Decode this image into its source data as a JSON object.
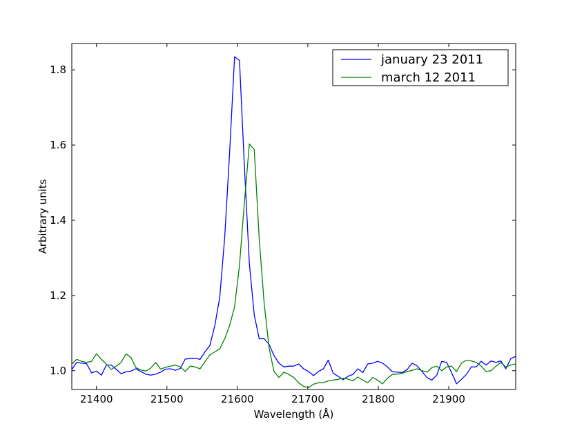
{
  "chart_data": {
    "type": "line",
    "title": "",
    "xlabel": "Wavelength (Å)",
    "ylabel": "Arbitrary units",
    "xlim": [
      21365,
      21995
    ],
    "ylim": [
      0.95,
      1.87
    ],
    "xticks": [
      21400,
      21500,
      21600,
      21700,
      21800,
      21900
    ],
    "xtick_labels": [
      "21400",
      "21500",
      "21600",
      "21700",
      "21800",
      "21900"
    ],
    "yticks": [
      1.0,
      1.2,
      1.4,
      1.6,
      1.8
    ],
    "ytick_labels": [
      "1.0",
      "1.2",
      "1.4",
      "1.6",
      "1.8"
    ],
    "grid": false,
    "legend_position": "top-right",
    "series": [
      {
        "name": "january 23 2011",
        "color": "#0000ff",
        "x": [
          21365,
          21372,
          21379,
          21386,
          21393,
          21400,
          21407,
          21414,
          21421,
          21428,
          21435,
          21442,
          21449,
          21456,
          21463,
          21470,
          21477,
          21484,
          21491,
          21498,
          21505,
          21512,
          21519,
          21526,
          21533,
          21540,
          21547,
          21554,
          21561,
          21568,
          21575,
          21582,
          21589,
          21596,
          21603,
          21610,
          21617,
          21624,
          21631,
          21638,
          21645,
          21652,
          21659,
          21666,
          21673,
          21680,
          21687,
          21694,
          21701,
          21708,
          21715,
          21722,
          21729,
          21736,
          21743,
          21750,
          21757,
          21764,
          21771,
          21778,
          21785,
          21792,
          21799,
          21806,
          21813,
          21820,
          21827,
          21834,
          21841,
          21848,
          21855,
          21862,
          21869,
          21876,
          21883,
          21890,
          21897,
          21904,
          21911,
          21918,
          21925,
          21932,
          21939,
          21946,
          21953,
          21960,
          21967,
          21974,
          21981,
          21988,
          21995
        ],
        "y": [
          1.003,
          1.022,
          1.02,
          1.019,
          0.994,
          0.999,
          0.988,
          1.015,
          1.015,
          1.004,
          0.992,
          0.997,
          0.999,
          1.005,
          0.998,
          0.991,
          0.988,
          0.991,
          0.996,
          1.004,
          1.005,
          1.001,
          1.006,
          1.031,
          1.032,
          1.033,
          1.03,
          1.05,
          1.067,
          1.12,
          1.195,
          1.355,
          1.58,
          1.835,
          1.825,
          1.54,
          1.285,
          1.148,
          1.085,
          1.085,
          1.07,
          1.04,
          1.02,
          1.01,
          1.012,
          1.012,
          1.018,
          1.005,
          0.998,
          0.987,
          0.998,
          1.005,
          1.028,
          0.993,
          0.985,
          0.976,
          0.985,
          0.99,
          1.005,
          0.995,
          1.018,
          1.02,
          1.025,
          1.02,
          1.01,
          0.997,
          0.996,
          0.995,
          1.003,
          1.02,
          1.013,
          0.998,
          0.982,
          0.975,
          0.988,
          1.025,
          1.022,
          0.995,
          0.965,
          0.977,
          0.99,
          1.01,
          1.01,
          1.025,
          1.015,
          1.026,
          1.022,
          1.026,
          1.005,
          1.032,
          1.038
        ]
      },
      {
        "name": "march 12 2011",
        "color": "#008000",
        "x": [
          21365,
          21372,
          21379,
          21386,
          21393,
          21400,
          21407,
          21414,
          21421,
          21428,
          21435,
          21442,
          21449,
          21456,
          21463,
          21470,
          21477,
          21484,
          21491,
          21498,
          21505,
          21512,
          21519,
          21526,
          21533,
          21540,
          21547,
          21554,
          21561,
          21568,
          21575,
          21582,
          21589,
          21596,
          21603,
          21610,
          21617,
          21624,
          21631,
          21638,
          21645,
          21652,
          21659,
          21666,
          21673,
          21680,
          21687,
          21694,
          21701,
          21708,
          21715,
          21722,
          21729,
          21736,
          21743,
          21750,
          21757,
          21764,
          21771,
          21778,
          21785,
          21792,
          21799,
          21806,
          21813,
          21820,
          21827,
          21834,
          21841,
          21848,
          21855,
          21862,
          21869,
          21876,
          21883,
          21890,
          21897,
          21904,
          21911,
          21918,
          21925,
          21932,
          21939,
          21946,
          21953,
          21960,
          21967,
          21974,
          21981,
          21988,
          21995
        ],
        "y": [
          1.018,
          1.03,
          1.025,
          1.022,
          1.025,
          1.045,
          1.03,
          1.018,
          1.003,
          1.012,
          1.022,
          1.045,
          1.035,
          1.008,
          1.002,
          0.999,
          1.007,
          1.022,
          1.004,
          1.009,
          1.012,
          1.015,
          1.01,
          0.998,
          1.012,
          1.01,
          1.005,
          1.024,
          1.042,
          1.05,
          1.058,
          1.085,
          1.12,
          1.17,
          1.28,
          1.45,
          1.603,
          1.588,
          1.35,
          1.18,
          1.06,
          0.998,
          0.982,
          0.996,
          0.99,
          0.982,
          0.968,
          0.958,
          0.955,
          0.964,
          0.968,
          0.968,
          0.973,
          0.975,
          0.977,
          0.98,
          0.978,
          0.973,
          0.983,
          0.975,
          0.968,
          0.982,
          0.975,
          0.965,
          0.98,
          0.99,
          0.991,
          0.993,
          0.998,
          1.001,
          1.005,
          1.0,
          0.996,
          1.008,
          1.012,
          1.0,
          1.01,
          1.012,
          0.998,
          1.02,
          1.028,
          1.026,
          1.022,
          1.012,
          0.998,
          1.0,
          1.012,
          1.022,
          1.01,
          1.015,
          1.018
        ]
      }
    ]
  }
}
